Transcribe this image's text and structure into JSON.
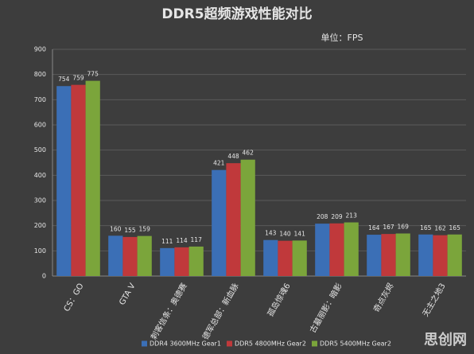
{
  "chart_data": {
    "type": "bar",
    "title": "DDR5超频游戏性能对比",
    "subtitle": "单位：FPS",
    "categories": [
      "CS：GO",
      "GTA V",
      "刺客信条：奥德赛",
      "德军总部：新血脉",
      "孤岛惊魂6",
      "古墓丽影：暗影",
      "奇点灰烬",
      "无主之地3"
    ],
    "series": [
      {
        "name": "DDR4 3600MHz Gear1",
        "color": "#3b6fb6",
        "values": [
          754,
          160,
          111,
          421,
          143,
          208,
          164,
          165
        ]
      },
      {
        "name": "DDR5 4800MHz Gear2",
        "color": "#c0393b",
        "values": [
          759,
          155,
          114,
          448,
          140,
          209,
          167,
          162
        ]
      },
      {
        "name": "DDR5 5400MHz Gear2",
        "color": "#7ba53b",
        "values": [
          775,
          159,
          117,
          462,
          141,
          213,
          169,
          165
        ]
      }
    ],
    "ylim": [
      0,
      900
    ],
    "yticks": [
      0,
      100,
      200,
      300,
      400,
      500,
      600,
      700,
      800,
      900
    ],
    "grid": true,
    "legend": "bottom",
    "watermark": "思创网"
  }
}
